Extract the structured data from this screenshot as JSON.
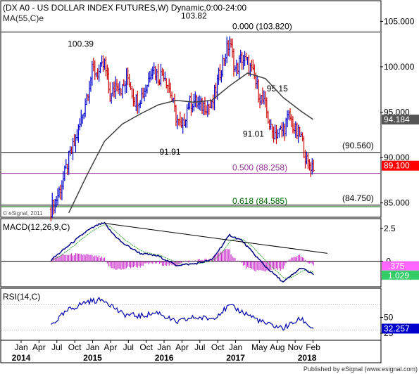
{
  "chart_data": {
    "type": "candlestick",
    "title": "(DX A0 - US DOLLAR INDEX FUTURES,W) Dynamic,0:00-24:00",
    "subtitle": "MA(55,C)e",
    "copyright": "© eSignal, 2011",
    "footer": "Published by eSignal (www.esignal.com)",
    "colors": {
      "bull": "#0000cc",
      "bear": "#cc0000",
      "ma": "#404040",
      "fib": "#993399",
      "fib618": "#006600",
      "macd": "#000080",
      "signal": "#33aa33",
      "hist": "#cc33cc",
      "rsi": "#0000aa",
      "price_box": "#ff0000",
      "ma_box": "#555555",
      "macd_box": "#33cc66",
      "signal_box": "#ff66ff",
      "rsi_box": "#0000cc"
    },
    "price_panel": {
      "ylim": [
        83.5,
        107.2
      ],
      "y_ticks": [
        "105.000",
        "100.000",
        "95.000",
        "90.000",
        "85.000"
      ],
      "y_tick_values": [
        105,
        100,
        95,
        90,
        85
      ],
      "annotations": [
        {
          "text": "103.82",
          "x": "2016-06",
          "y": 105.3
        },
        {
          "text": "100.39",
          "x": "2014-11",
          "y": 102.2
        },
        {
          "text": "91.91",
          "x": "2016-02",
          "y": 90.3
        },
        {
          "text": "91.01",
          "x": "2017-04",
          "y": 92.3
        },
        {
          "text": "95.15",
          "x": "2017-08",
          "y": 97.3
        }
      ],
      "levels": [
        {
          "label": "0.000 (103.820)",
          "value": 103.82,
          "kind": "fib0"
        },
        {
          "label": "(90.560)",
          "value": 90.56,
          "kind": "plain"
        },
        {
          "label": "0.500 (88.258)",
          "value": 88.258,
          "kind": "fib"
        },
        {
          "label": "0.618 (84.585)",
          "value": 84.585,
          "kind": "fib618"
        },
        {
          "label": "(84.750)",
          "value": 84.75,
          "kind": "plain"
        }
      ],
      "last_price": "89.100",
      "last_value": 89.1,
      "ma_label": "94.184",
      "ma_value": 94.184
    },
    "macd_panel": {
      "title": "MACD(12,26,9,C)",
      "ylim": [
        -1.9,
        3.2
      ],
      "y_ticks": [
        "2.5",
        ".0"
      ],
      "y_tick_values": [
        2.5,
        0
      ],
      "macd_label": "1.029",
      "macd_value": -1.029,
      "signal_label": ".375",
      "signal_value": -0.375,
      "trend_line": [
        {
          "x": "2015-03",
          "y": 2.9
        },
        {
          "x": "2018-03",
          "y": 0.6
        }
      ]
    },
    "rsi_panel": {
      "title": "RSI(14,C)",
      "ylim": [
        15,
        95
      ],
      "y_ticks": [
        "50",
        "25"
      ],
      "y_tick_values": [
        50,
        25
      ],
      "rsi_label": "32.257",
      "rsi_value": 32.257
    },
    "x_axis": {
      "month_labels": [
        {
          "label": "Jan",
          "date": "2014-01"
        },
        {
          "label": "Apr",
          "date": "2014-04"
        },
        {
          "label": "Jul",
          "date": "2014-07"
        },
        {
          "label": "Oct",
          "date": "2014-10"
        },
        {
          "label": "Jan",
          "date": "2015-01"
        },
        {
          "label": "Apr",
          "date": "2015-04"
        },
        {
          "label": "Jul",
          "date": "2015-07"
        },
        {
          "label": "Oct",
          "date": "2015-10"
        },
        {
          "label": "Jan",
          "date": "2016-01"
        },
        {
          "label": "Apr",
          "date": "2016-04"
        },
        {
          "label": "Jul",
          "date": "2016-07"
        },
        {
          "label": "Oct",
          "date": "2016-10"
        },
        {
          "label": "Jan",
          "date": "2017-01"
        },
        {
          "label": "May",
          "date": "2017-05"
        },
        {
          "label": "Aug",
          "date": "2017-08"
        },
        {
          "label": "Nov",
          "date": "2017-11"
        },
        {
          "label": "Feb",
          "date": "2018-02"
        }
      ],
      "year_labels": [
        {
          "label": "2014",
          "date": "2014-01"
        },
        {
          "label": "2015",
          "date": "2015-01"
        },
        {
          "label": "2016",
          "date": "2016-01"
        },
        {
          "label": "2017",
          "date": "2017-01"
        },
        {
          "label": "2018",
          "date": "2018-01"
        }
      ]
    },
    "series": [
      {
        "name": "price",
        "x": [
          "2014-06",
          "2014-07",
          "2014-08",
          "2014-09",
          "2014-10",
          "2014-11",
          "2014-12",
          "2015-01",
          "2015-02",
          "2015-03",
          "2015-04",
          "2015-05",
          "2015-06",
          "2015-07",
          "2015-08",
          "2015-09",
          "2015-10",
          "2015-11",
          "2015-12",
          "2016-01",
          "2016-02",
          "2016-03",
          "2016-04",
          "2016-05",
          "2016-06",
          "2016-07",
          "2016-08",
          "2016-09",
          "2016-10",
          "2016-11",
          "2016-12",
          "2017-01",
          "2017-02",
          "2017-03",
          "2017-04",
          "2017-05",
          "2017-06",
          "2017-07",
          "2017-08",
          "2017-09",
          "2017-10",
          "2017-11",
          "2017-12",
          "2018-01",
          "2018-02"
        ],
        "close": [
          84.3,
          85.6,
          87.4,
          89.9,
          91.6,
          93.9,
          96.8,
          99.7,
          99.3,
          100.3,
          96.4,
          98.4,
          97.5,
          98.9,
          96.3,
          96.6,
          97.8,
          100.2,
          98.8,
          99.4,
          97.3,
          94.5,
          93.0,
          95.9,
          96.2,
          95.6,
          95.8,
          95.5,
          98.5,
          100.9,
          102.7,
          99.5,
          101.0,
          100.4,
          99.0,
          96.9,
          95.6,
          92.8,
          92.7,
          93.1,
          94.6,
          92.9,
          92.2,
          89.3,
          89.1
        ]
      },
      {
        "name": "MA(55,C)e",
        "x": [
          "2014-09",
          "2014-12",
          "2015-03",
          "2015-06",
          "2015-09",
          "2015-12",
          "2016-03",
          "2016-06",
          "2016-09",
          "2016-12",
          "2017-03",
          "2017-06",
          "2017-09",
          "2017-12",
          "2018-02"
        ],
        "values": [
          83.9,
          88.0,
          91.8,
          93.7,
          94.8,
          95.8,
          96.3,
          96.1,
          96.3,
          97.9,
          99.3,
          98.7,
          96.6,
          95.1,
          94.2
        ]
      },
      {
        "name": "MACD",
        "x": [
          "2014-06",
          "2014-09",
          "2014-12",
          "2015-02",
          "2015-03",
          "2015-04",
          "2015-06",
          "2015-09",
          "2015-12",
          "2016-03",
          "2016-06",
          "2016-09",
          "2016-12",
          "2017-02",
          "2017-06",
          "2017-09",
          "2017-12",
          "2018-02"
        ],
        "values": [
          0.1,
          1.2,
          2.3,
          2.8,
          2.9,
          2.3,
          1.4,
          0.6,
          0.4,
          -0.3,
          -0.2,
          0.1,
          2.0,
          1.6,
          -0.4,
          -1.6,
          -0.5,
          -1.0
        ]
      },
      {
        "name": "RSI",
        "x": [
          "2014-06",
          "2014-09",
          "2014-12",
          "2015-03",
          "2015-06",
          "2015-09",
          "2015-12",
          "2016-03",
          "2016-06",
          "2016-09",
          "2016-12",
          "2017-03",
          "2017-06",
          "2017-09",
          "2017-12",
          "2018-02"
        ],
        "values": [
          38,
          62,
          75,
          78,
          55,
          52,
          58,
          42,
          50,
          48,
          68,
          55,
          40,
          33,
          48,
          32
        ]
      }
    ]
  }
}
